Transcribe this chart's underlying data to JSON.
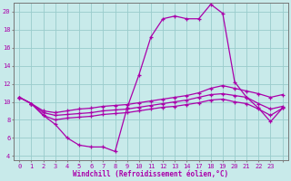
{
  "bg_color": "#c8eaea",
  "line_color": "#aa00aa",
  "grid_color": "#99cccc",
  "xlabel": "Windchill (Refroidissement éolien,°C)",
  "xlim": [
    -0.5,
    22.5
  ],
  "ylim": [
    3.5,
    21.0
  ],
  "yticks": [
    4,
    6,
    8,
    10,
    12,
    14,
    16,
    18,
    20
  ],
  "xtick_positions": [
    0,
    1,
    2,
    3,
    4,
    5,
    6,
    7,
    8,
    9,
    10,
    11,
    12,
    13,
    14,
    15,
    16,
    17,
    18,
    19,
    20,
    21,
    22
  ],
  "xtick_labels": [
    "0",
    "1",
    "2",
    "3",
    "4",
    "5",
    "6",
    "7",
    "8",
    "9",
    "10",
    "11",
    "12",
    "13",
    "14",
    "17",
    "18",
    "19",
    "20",
    "21",
    "22",
    "23",
    ""
  ],
  "hours": [
    0,
    1,
    2,
    3,
    4,
    5,
    6,
    7,
    8,
    9,
    10,
    11,
    12,
    13,
    14,
    15,
    16,
    17,
    18,
    19,
    20,
    21,
    22
  ],
  "line1_y": [
    10.5,
    9.8,
    8.5,
    7.5,
    6.0,
    5.2,
    5.0,
    5.0,
    4.5,
    9.3,
    13.0,
    17.2,
    19.2,
    19.5,
    19.2,
    19.2,
    20.8,
    19.8,
    12.2,
    10.5,
    9.3,
    7.8,
    9.3
  ],
  "line2_y": [
    10.5,
    9.8,
    9.0,
    8.8,
    9.0,
    9.2,
    9.3,
    9.5,
    9.6,
    9.7,
    9.9,
    10.1,
    10.3,
    10.5,
    10.7,
    11.0,
    11.5,
    11.8,
    11.5,
    11.2,
    10.9,
    10.5,
    10.8
  ],
  "line3_y": [
    10.5,
    9.8,
    8.8,
    8.5,
    8.6,
    8.7,
    8.8,
    9.0,
    9.1,
    9.2,
    9.4,
    9.6,
    9.8,
    10.0,
    10.2,
    10.5,
    10.8,
    10.9,
    10.7,
    10.5,
    9.8,
    9.2,
    9.5
  ],
  "line4_y": [
    10.5,
    9.8,
    8.5,
    8.0,
    8.2,
    8.3,
    8.4,
    8.6,
    8.7,
    8.8,
    9.0,
    9.2,
    9.4,
    9.5,
    9.7,
    9.9,
    10.2,
    10.3,
    10.0,
    9.8,
    9.2,
    8.5,
    9.3
  ]
}
